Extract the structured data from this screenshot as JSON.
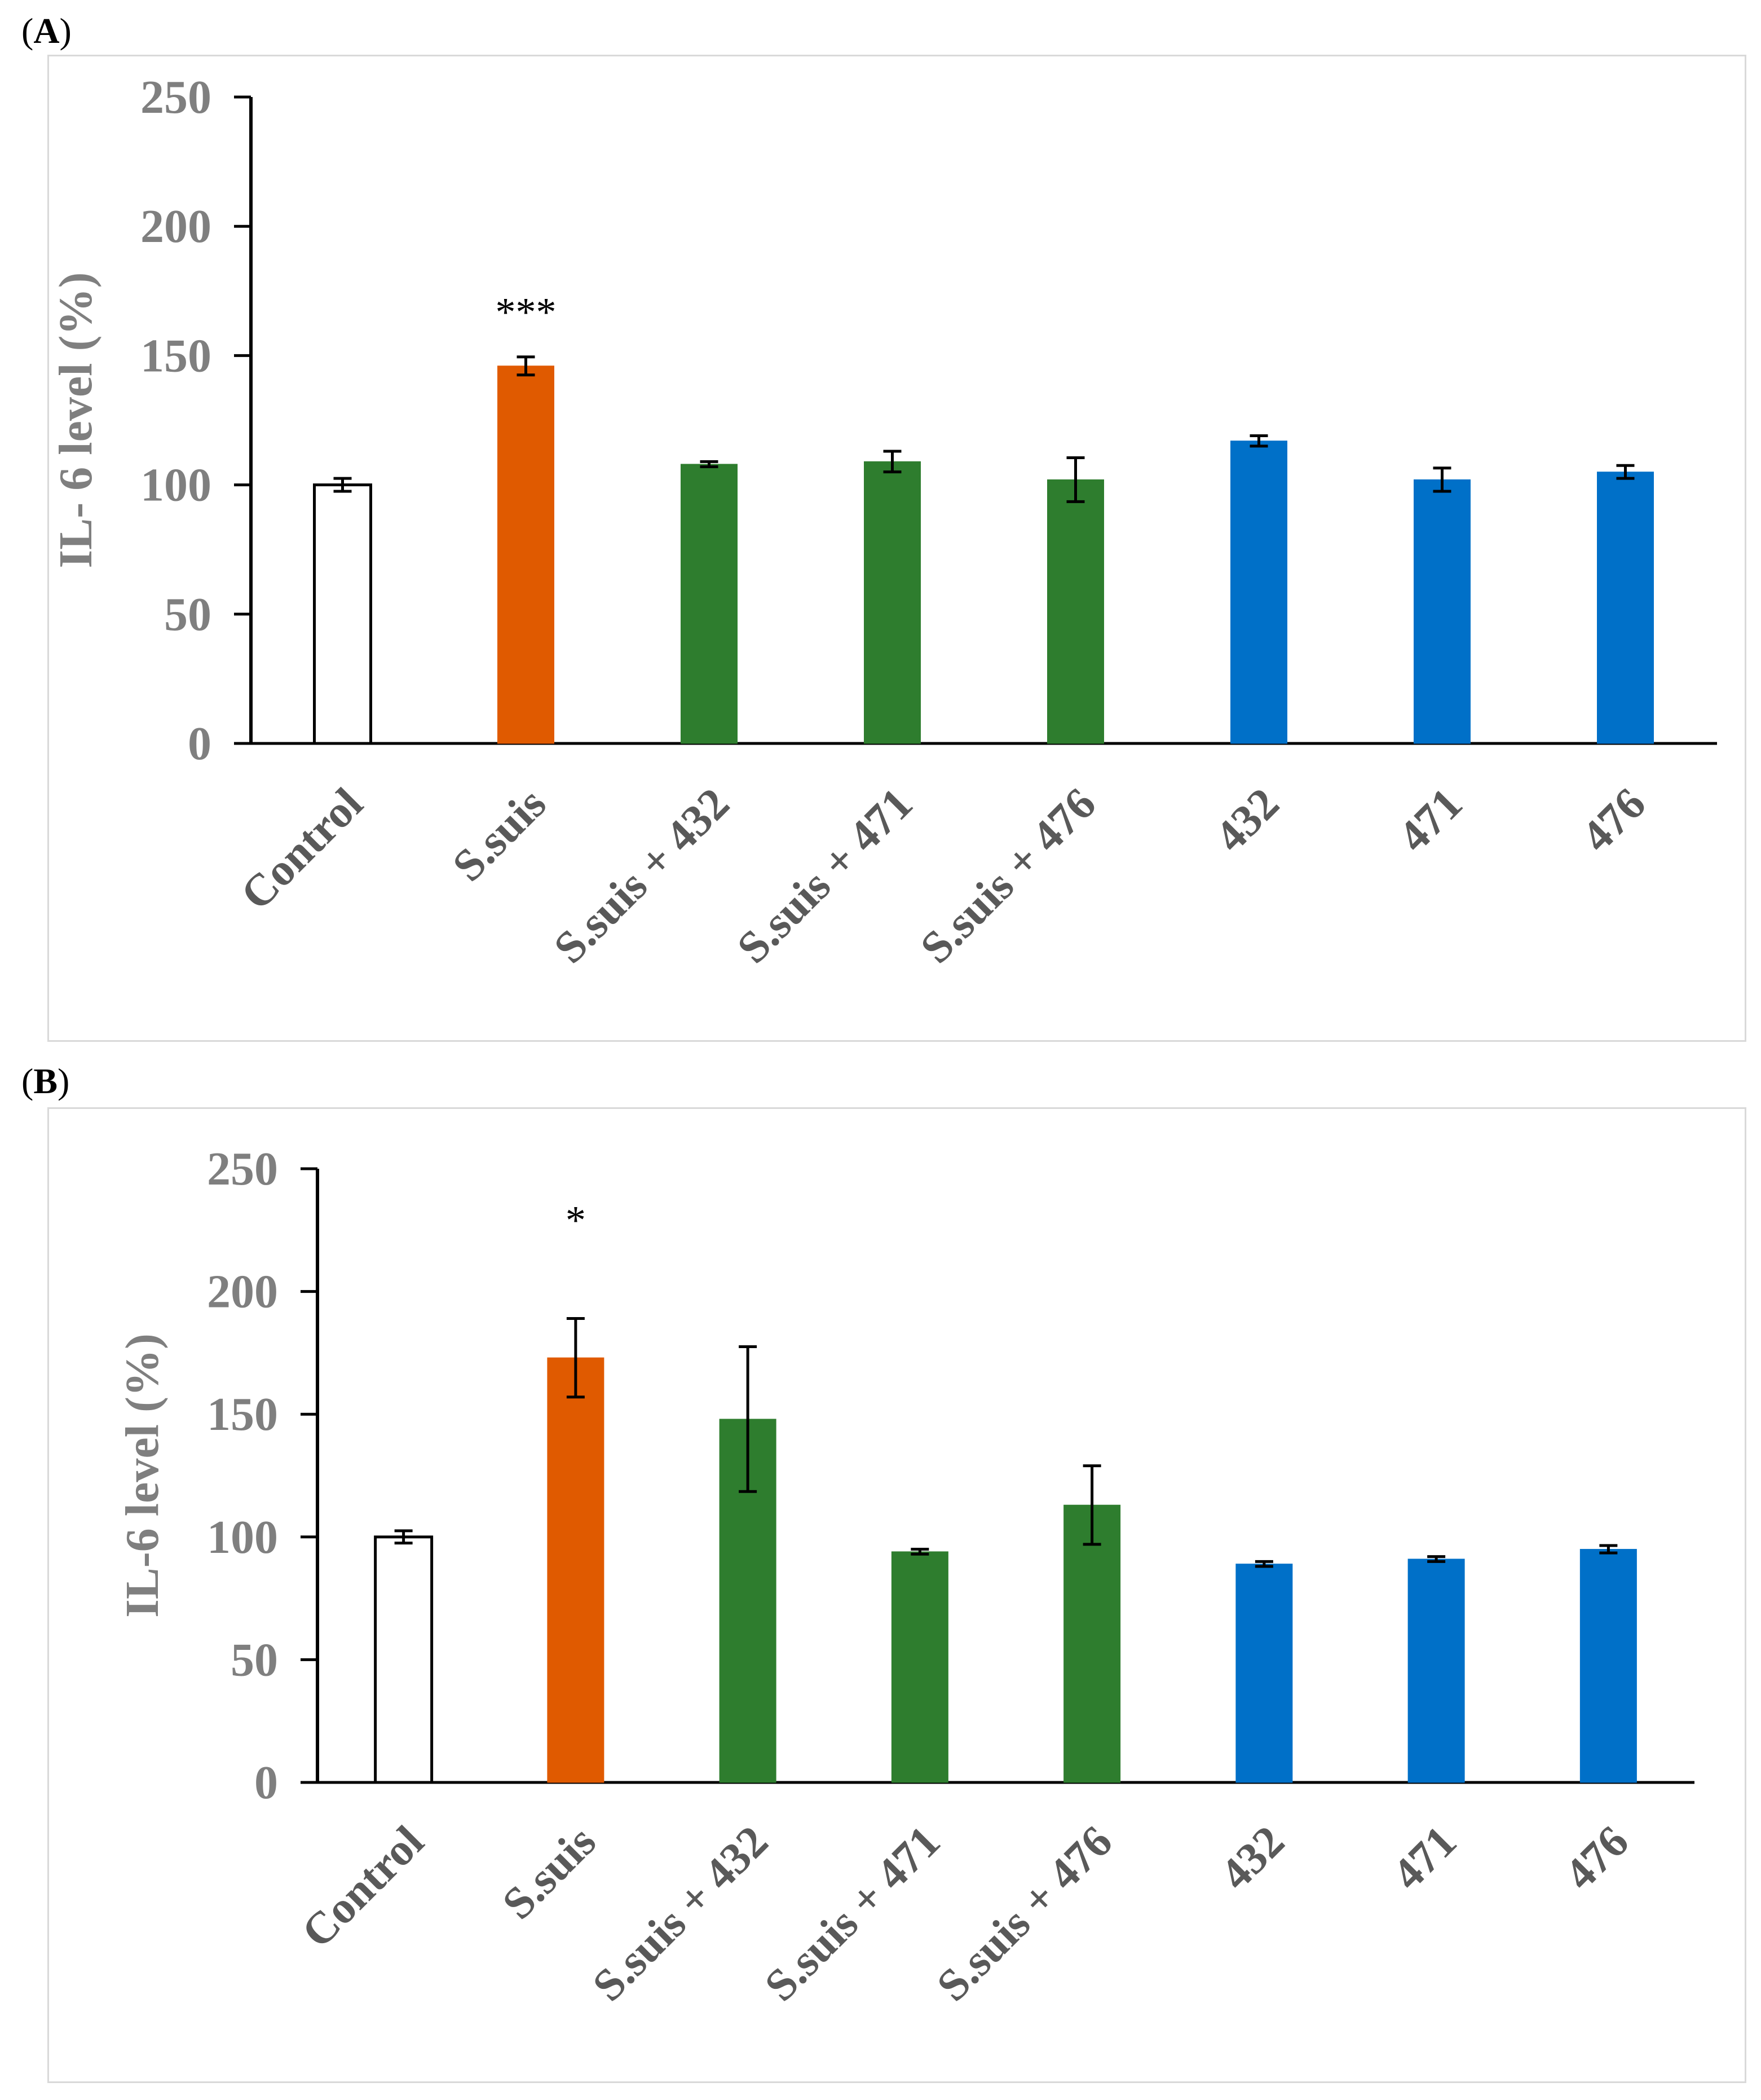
{
  "chart_data": [
    {
      "panel_label": "A",
      "type": "bar",
      "ylabel": "IL- 6  level (%)",
      "ylim": [
        0,
        250
      ],
      "yticks": [
        0,
        50,
        100,
        150,
        200,
        250
      ],
      "categories": [
        "Control",
        "S.suis",
        "S.suis + 432",
        "S.suis + 471",
        "S.suis + 476",
        "432",
        "471",
        "476"
      ],
      "values": [
        100,
        146,
        108,
        109,
        102,
        117,
        102,
        105
      ],
      "errors": [
        2.5,
        3.5,
        1,
        4,
        8.5,
        2,
        4.5,
        2.5
      ],
      "colors": [
        "#ffffff",
        "#e05a00",
        "#2e7d2e",
        "#2e7d2e",
        "#2e7d2e",
        "#0070c8",
        "#0070c8",
        "#0070c8"
      ],
      "annotations": [
        {
          "category": "S.suis",
          "text": "***"
        }
      ]
    },
    {
      "panel_label": "B",
      "type": "bar",
      "ylabel": "IL-6 level (%)",
      "ylim": [
        0,
        250
      ],
      "yticks": [
        0,
        50,
        100,
        150,
        200,
        250
      ],
      "categories": [
        "Control",
        "S.suis",
        "S.suis + 432",
        "S.suis + 471",
        "S.suis + 476",
        "432",
        "471",
        "476"
      ],
      "values": [
        100,
        173,
        148,
        94,
        113,
        89,
        91,
        95
      ],
      "errors": [
        2.5,
        16,
        29.5,
        1,
        16,
        1,
        1,
        1.5
      ],
      "colors": [
        "#ffffff",
        "#e05a00",
        "#2e7d2e",
        "#2e7d2e",
        "#2e7d2e",
        "#0070c8",
        "#0070c8",
        "#0070c8"
      ],
      "annotations": [
        {
          "category": "S.suis",
          "text": "*"
        }
      ]
    }
  ]
}
